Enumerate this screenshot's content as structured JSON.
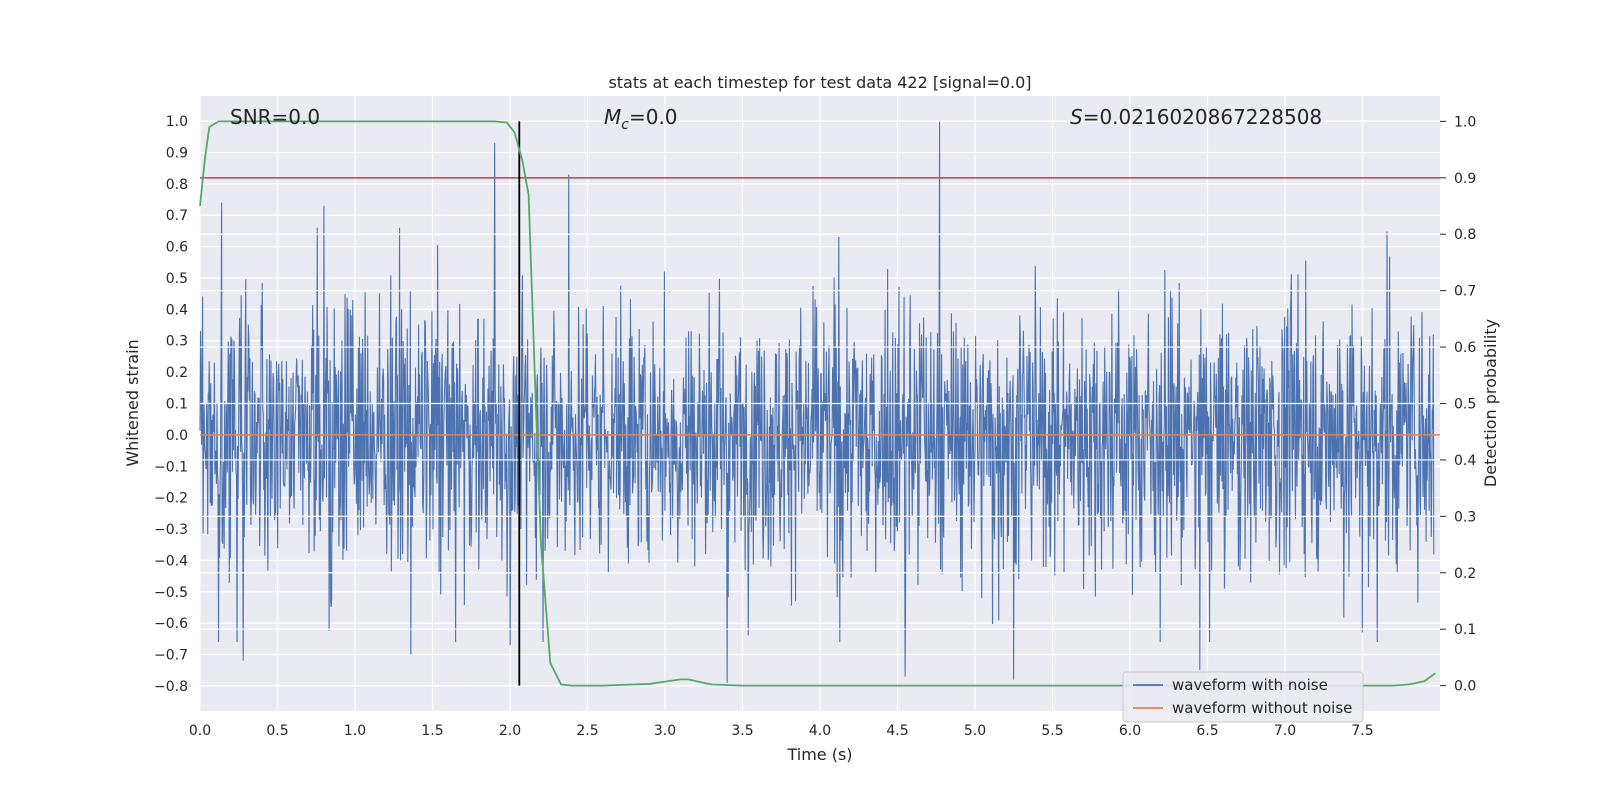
{
  "chart_data": {
    "type": "line",
    "title": "stats at each timestep for test data 422 [signal=0.0]",
    "xlabel": "Time (s)",
    "ylabel": "Whitened strain",
    "y2label": "Detection probability",
    "xlim": [
      0.0,
      8.0
    ],
    "ylim": [
      -0.88,
      1.08
    ],
    "y2lim": [
      -0.045,
      1.045
    ],
    "xticks": [
      "0.0",
      "0.5",
      "1.0",
      "1.5",
      "2.0",
      "2.5",
      "3.0",
      "3.5",
      "4.0",
      "4.5",
      "5.0",
      "5.5",
      "6.0",
      "6.5",
      "7.0",
      "7.5"
    ],
    "yticks": [
      "1.0",
      "0.9",
      "0.8",
      "0.7",
      "0.6",
      "0.5",
      "0.4",
      "0.3",
      "0.2",
      "0.1",
      "0.0",
      "−0.1",
      "−0.2",
      "−0.3",
      "−0.4",
      "−0.5",
      "−0.6",
      "−0.7",
      "−0.8"
    ],
    "y2ticks": [
      "1.0",
      "0.9",
      "0.8",
      "0.7",
      "0.6",
      "0.5",
      "0.4",
      "0.3",
      "0.2",
      "0.1",
      "0.0"
    ],
    "annotations": {
      "snr": "SNR=0.0",
      "mc_symbol": "M",
      "mc_sub": "c",
      "mc_value": "=0.0",
      "s_symbol": "S",
      "s_value": "=0.0216020867228508"
    },
    "threshold_y2": 0.9,
    "vertical_line_x": 2.06,
    "noise_series": {
      "name": "waveform with noise",
      "color": "#4c72b0",
      "envelope_upper_typical": 0.45,
      "envelope_lower_typical": -0.45,
      "peaks": [
        {
          "x": 1.9,
          "y": 0.93
        },
        {
          "x": 2.38,
          "y": 0.83
        },
        {
          "x": 4.77,
          "y": 1.0
        },
        {
          "x": 0.14,
          "y": 0.74
        },
        {
          "x": 0.8,
          "y": 0.73
        },
        {
          "x": 0.28,
          "y": -0.72
        },
        {
          "x": 1.36,
          "y": -0.7
        },
        {
          "x": 2.0,
          "y": -0.67
        },
        {
          "x": 3.4,
          "y": -0.79
        },
        {
          "x": 5.25,
          "y": -0.78
        },
        {
          "x": 4.55,
          "y": -0.77
        },
        {
          "x": 6.45,
          "y": -0.75
        },
        {
          "x": 7.5,
          "y": -0.63
        }
      ]
    },
    "clean_series": {
      "name": "waveform without noise",
      "color": "#dd8452",
      "x": [
        0.0,
        8.0
      ],
      "y": [
        0.0,
        0.0
      ]
    },
    "probability_series": {
      "name": "detection probability",
      "color": "#55a868",
      "x": [
        0.0,
        0.03,
        0.06,
        0.12,
        0.3,
        1.0,
        1.5,
        1.9,
        1.98,
        2.03,
        2.08,
        2.12,
        2.16,
        2.2,
        2.26,
        2.33,
        2.4,
        2.6,
        2.9,
        3.0,
        3.1,
        3.15,
        3.2,
        3.3,
        3.5,
        4.0,
        5.0,
        6.0,
        7.0,
        7.7,
        7.8,
        7.9,
        7.97
      ],
      "y": [
        0.85,
        0.93,
        0.99,
        1.0,
        1.0,
        1.0,
        1.0,
        1.0,
        0.998,
        0.98,
        0.93,
        0.87,
        0.55,
        0.25,
        0.04,
        0.002,
        0.0,
        0.0,
        0.003,
        0.007,
        0.011,
        0.011,
        0.008,
        0.002,
        0.0,
        0.0,
        0.0,
        0.0,
        0.0,
        0.0,
        0.002,
        0.008,
        0.022
      ]
    },
    "legend": {
      "position": "lower-right",
      "entries": [
        "waveform with noise",
        "waveform without noise"
      ]
    }
  },
  "colors": {
    "plot_bg": "#eaeaf2",
    "grid": "#ffffff",
    "threshold": "#c44e52",
    "vline": "#000000"
  }
}
